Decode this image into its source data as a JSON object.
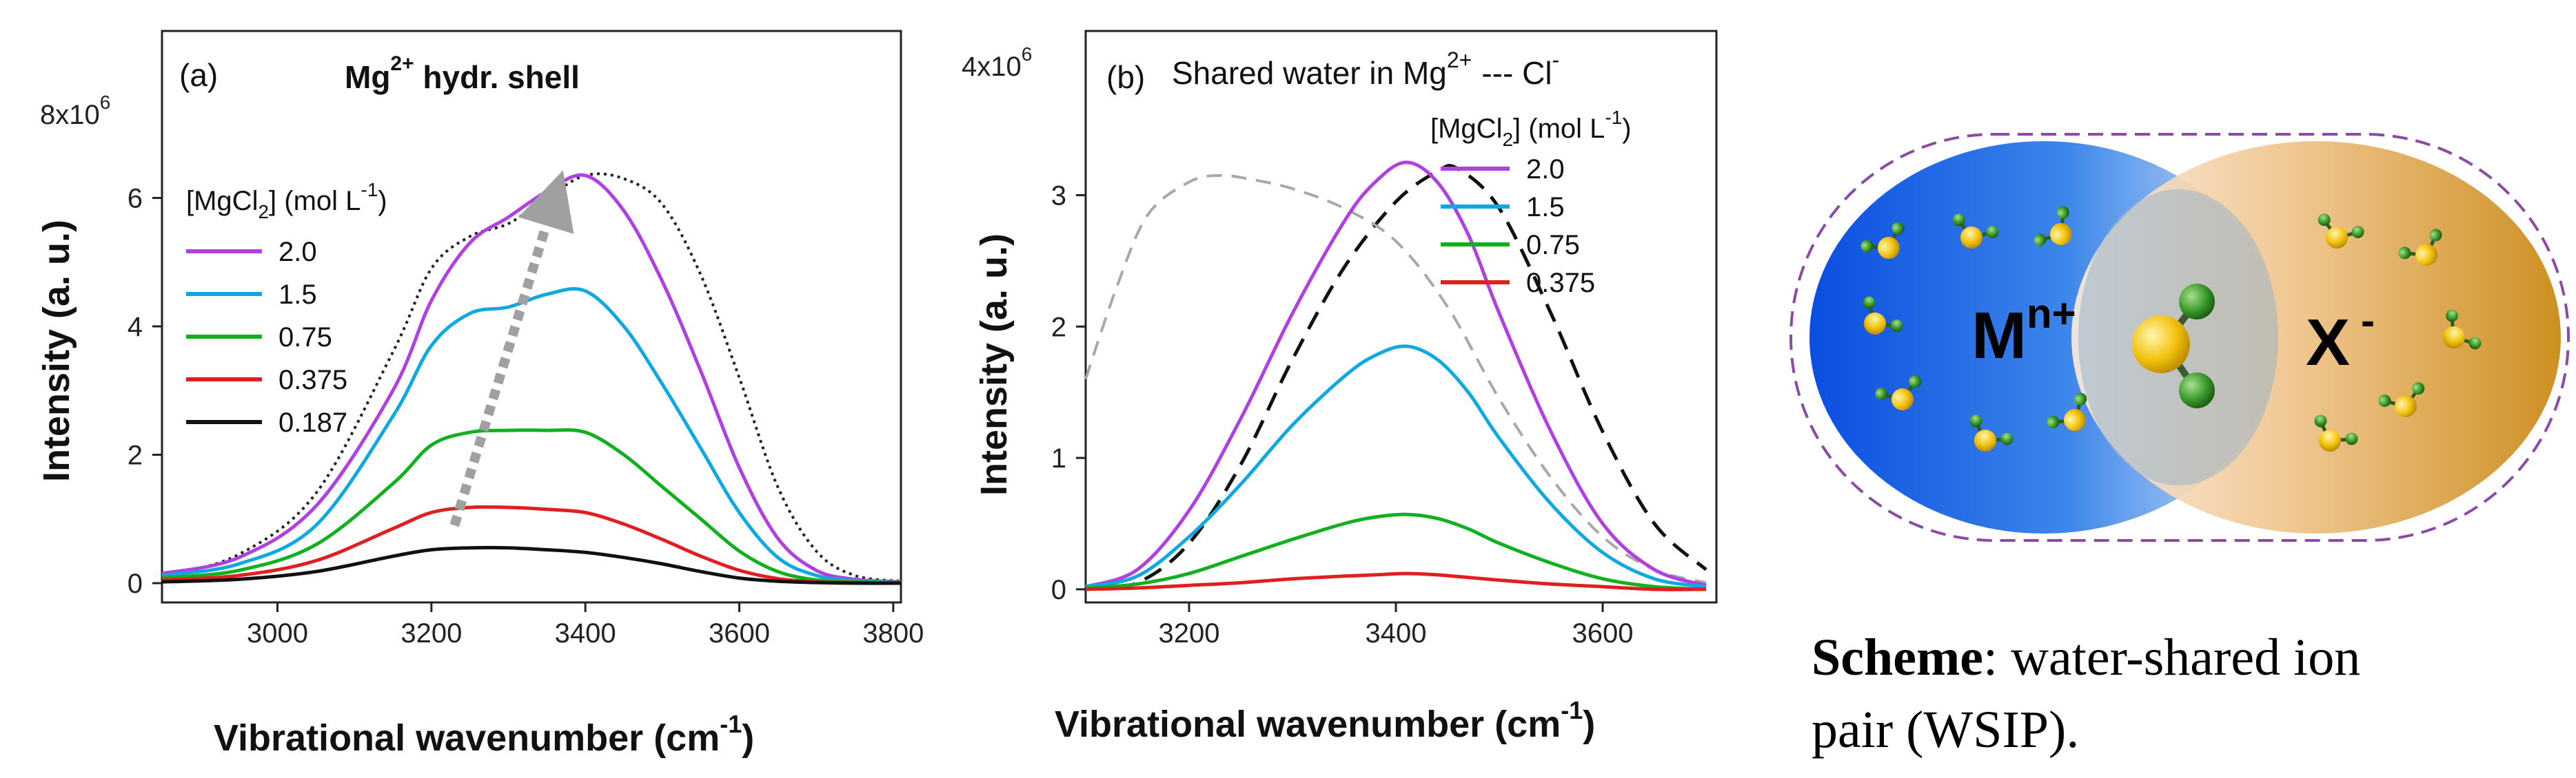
{
  "chart_data": [
    {
      "type": "line",
      "panel_label": "(a)",
      "title_parts": {
        "pre": "Mg",
        "sup": "2+",
        "post": " hydr. shell"
      },
      "xlabel_parts": {
        "pre": "Vibrational wavenumber (cm",
        "sup": "-1",
        "post": ")"
      },
      "ylabel": "Intensity (a. u.)",
      "xlim": [
        2850,
        3810
      ],
      "ylim": [
        -0.3,
        8.6
      ],
      "y_multiplier_parts": {
        "pre": "8x10",
        "sup": "6"
      },
      "x_ticks": [
        3000,
        3200,
        3400,
        3600,
        3800
      ],
      "y_ticks": [
        0,
        2,
        4,
        6
      ],
      "legend_title_parts": {
        "pre": "[MgCl",
        "sub": "2",
        "mid": "]  (mol L",
        "sup": "-1",
        "post": ")"
      },
      "series": [
        {
          "name": "2.0",
          "color": "#b040e0",
          "x": [
            2850,
            2950,
            3050,
            3150,
            3200,
            3250,
            3300,
            3350,
            3400,
            3450,
            3500,
            3550,
            3600,
            3650,
            3700,
            3750,
            3810
          ],
          "values": [
            0.15,
            0.4,
            1.2,
            3.0,
            4.4,
            5.3,
            5.7,
            6.1,
            6.35,
            5.8,
            4.7,
            3.3,
            1.8,
            0.7,
            0.2,
            0.06,
            0.02
          ]
        },
        {
          "name": "1.5",
          "color": "#10a8e0",
          "x": [
            2850,
            2950,
            3050,
            3150,
            3200,
            3250,
            3300,
            3350,
            3400,
            3450,
            3500,
            3550,
            3600,
            3650,
            3700,
            3750,
            3810
          ],
          "values": [
            0.12,
            0.3,
            0.9,
            2.6,
            3.7,
            4.2,
            4.3,
            4.5,
            4.55,
            4.0,
            3.1,
            2.1,
            1.1,
            0.4,
            0.12,
            0.04,
            0.01
          ]
        },
        {
          "name": "0.75",
          "color": "#10b020",
          "x": [
            2850,
            2950,
            3050,
            3150,
            3200,
            3250,
            3300,
            3350,
            3400,
            3450,
            3500,
            3550,
            3600,
            3650,
            3700,
            3750,
            3810
          ],
          "values": [
            0.08,
            0.2,
            0.6,
            1.55,
            2.15,
            2.35,
            2.38,
            2.38,
            2.35,
            2.0,
            1.5,
            1.0,
            0.5,
            0.18,
            0.05,
            0.02,
            0.01
          ]
        },
        {
          "name": "0.375",
          "color": "#e02020",
          "x": [
            2850,
            2950,
            3050,
            3150,
            3200,
            3250,
            3300,
            3350,
            3400,
            3450,
            3500,
            3550,
            3600,
            3650,
            3700,
            3750,
            3810
          ],
          "values": [
            0.05,
            0.12,
            0.35,
            0.85,
            1.1,
            1.18,
            1.18,
            1.15,
            1.1,
            0.92,
            0.68,
            0.42,
            0.2,
            0.07,
            0.02,
            0.01,
            0.0
          ]
        },
        {
          "name": "0.187",
          "color": "#111111",
          "x": [
            2850,
            2950,
            3050,
            3150,
            3200,
            3250,
            3300,
            3350,
            3400,
            3450,
            3500,
            3550,
            3600,
            3650,
            3700,
            3750,
            3810
          ],
          "values": [
            0.02,
            0.06,
            0.18,
            0.42,
            0.52,
            0.55,
            0.55,
            0.52,
            0.48,
            0.4,
            0.3,
            0.18,
            0.08,
            0.03,
            0.01,
            0.0,
            0.0
          ]
        },
        {
          "name": "",
          "style": "dotted",
          "color": "#222222",
          "x": [
            2850,
            2950,
            3050,
            3150,
            3200,
            3250,
            3300,
            3350,
            3400,
            3450,
            3500,
            3550,
            3600,
            3650,
            3700,
            3750,
            3810
          ],
          "values": [
            0.1,
            0.45,
            1.4,
            3.6,
            4.9,
            5.4,
            5.6,
            6.0,
            6.35,
            6.3,
            5.9,
            4.8,
            3.2,
            1.5,
            0.5,
            0.12,
            0.03
          ]
        }
      ],
      "annotations": [
        {
          "type": "arrow",
          "style": "dashed-gray",
          "from": [
            3230,
            0.9
          ],
          "to": [
            3360,
            6.0
          ]
        }
      ]
    },
    {
      "type": "line",
      "panel_label": "(b)",
      "title_parts": {
        "pre": "Shared water in Mg",
        "sup": "2+",
        "mid": "--- Cl",
        "sup2": "-"
      },
      "xlabel_parts": {
        "pre": "Vibrational wavenumber (cm",
        "sup": "-1",
        "post": ")"
      },
      "ylabel": "Intensity (a. u.)",
      "xlim": [
        3100,
        3710
      ],
      "ylim": [
        -0.1,
        4.25
      ],
      "y_multiplier_parts": {
        "pre": "4x10",
        "sup": "6"
      },
      "x_ticks": [
        3200,
        3400,
        3600
      ],
      "y_ticks": [
        0,
        1,
        2,
        3
      ],
      "legend_title_parts": {
        "pre": "[MgCl",
        "sub": "2",
        "mid": "]  (mol L",
        "sup": "-1",
        "post": ")"
      },
      "series": [
        {
          "name": "2.0",
          "color": "#b040e0",
          "x": [
            3100,
            3150,
            3200,
            3250,
            3300,
            3350,
            3380,
            3410,
            3440,
            3470,
            3500,
            3550,
            3600,
            3650,
            3700
          ],
          "values": [
            0.02,
            0.15,
            0.6,
            1.3,
            2.1,
            2.8,
            3.1,
            3.25,
            3.1,
            2.7,
            2.1,
            1.2,
            0.5,
            0.15,
            0.03
          ]
        },
        {
          "name": "1.5",
          "color": "#10a8e0",
          "x": [
            3100,
            3150,
            3200,
            3250,
            3300,
            3350,
            3380,
            3410,
            3440,
            3470,
            3500,
            3550,
            3600,
            3650,
            3700
          ],
          "values": [
            0.02,
            0.1,
            0.4,
            0.8,
            1.25,
            1.62,
            1.78,
            1.85,
            1.75,
            1.5,
            1.15,
            0.65,
            0.28,
            0.08,
            0.02
          ]
        },
        {
          "name": "0.75",
          "color": "#10b020",
          "x": [
            3100,
            3150,
            3200,
            3250,
            3300,
            3350,
            3380,
            3410,
            3440,
            3470,
            3500,
            3550,
            3600,
            3650,
            3700
          ],
          "values": [
            0.01,
            0.04,
            0.12,
            0.25,
            0.38,
            0.5,
            0.55,
            0.57,
            0.54,
            0.46,
            0.35,
            0.2,
            0.08,
            0.02,
            0.0
          ]
        },
        {
          "name": "0.375",
          "color": "#e02020",
          "x": [
            3100,
            3150,
            3200,
            3250,
            3300,
            3350,
            3380,
            3410,
            3440,
            3470,
            3500,
            3550,
            3600,
            3650,
            3700
          ],
          "values": [
            0.0,
            0.01,
            0.03,
            0.05,
            0.08,
            0.1,
            0.11,
            0.12,
            0.11,
            0.09,
            0.07,
            0.04,
            0.02,
            0.0,
            0.0
          ]
        },
        {
          "name": "",
          "style": "dashed",
          "color": "#111111",
          "x": [
            3100,
            3150,
            3200,
            3250,
            3300,
            3350,
            3400,
            3440,
            3460,
            3500,
            3550,
            3600,
            3650,
            3700
          ],
          "values": [
            0.0,
            0.05,
            0.35,
            0.95,
            1.75,
            2.45,
            2.95,
            3.18,
            3.2,
            2.9,
            2.1,
            1.2,
            0.5,
            0.15
          ]
        },
        {
          "name": "",
          "style": "dashed-gray",
          "color": "#a8a8a8",
          "x": [
            3100,
            3130,
            3160,
            3200,
            3230,
            3260,
            3300,
            3350,
            3400,
            3450,
            3500,
            3550,
            3600,
            3650,
            3700
          ],
          "values": [
            1.6,
            2.3,
            2.85,
            3.1,
            3.15,
            3.12,
            3.05,
            2.9,
            2.65,
            2.15,
            1.45,
            0.85,
            0.4,
            0.15,
            0.05
          ]
        }
      ]
    }
  ],
  "scheme": {
    "cation_parts": {
      "pre": "M",
      "sup": "n+"
    },
    "anion_parts": {
      "pre": "X",
      "sup": "-"
    },
    "caption_bold": "Scheme",
    "caption_line1": ": water-shared ion",
    "caption_line2": "pair (WSIP).",
    "colors": {
      "cation_dark": "#1060e0",
      "cation_light": "#c8dcf4",
      "anion_dark": "#d08a10",
      "anion_light": "#f8e2cc",
      "border_left": "#7a4aa8",
      "border_right": "#e03050",
      "oxygen": "#f0c010",
      "hydrogen": "#40a030"
    }
  }
}
